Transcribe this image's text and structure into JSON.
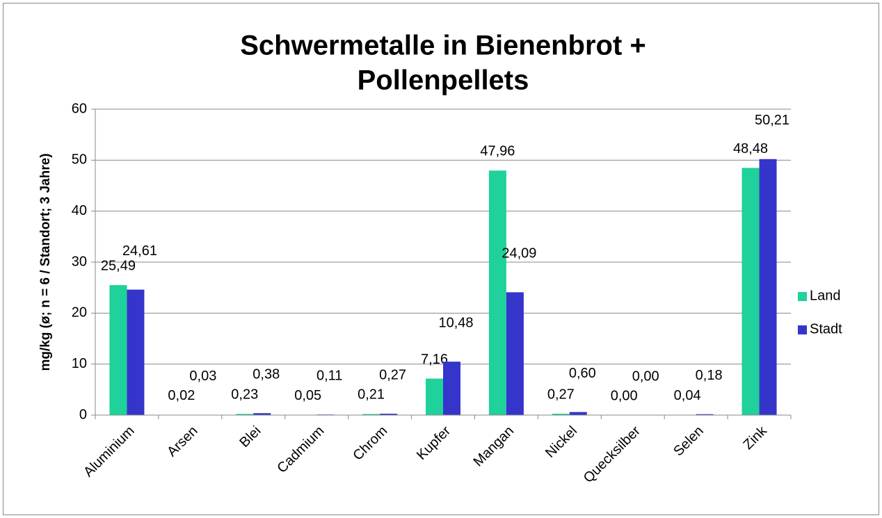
{
  "chart_data": {
    "type": "bar",
    "title": [
      "Schwermetalle in Bienenbrot +",
      "Pollenpellets"
    ],
    "y_label": "mg/kg (ø; n = 6 / Standort; 3 Jahre)",
    "categories": [
      "Aluminium",
      "Arsen",
      "Blei",
      "Cadmium",
      "Chrom",
      "Kupfer",
      "Mangan",
      "Nickel",
      "Quecksilber",
      "Selen",
      "Zink"
    ],
    "series": [
      {
        "name": "Land",
        "color": "#1fd19b",
        "values": [
          25.49,
          0.02,
          0.23,
          0.05,
          0.21,
          7.16,
          47.96,
          0.27,
          0.0,
          0.04,
          48.48
        ],
        "value_labels": [
          "25,49",
          "0,02",
          "0,23",
          "0,05",
          "0,21",
          "7,16",
          "47,96",
          "0,27",
          "0,00",
          "0,04",
          "48,48"
        ]
      },
      {
        "name": "Stadt",
        "color": "#3535cc",
        "values": [
          24.61,
          0.03,
          0.38,
          0.11,
          0.27,
          10.48,
          24.09,
          0.6,
          0.0,
          0.18,
          50.21
        ],
        "value_labels": [
          "24,61",
          "0,03",
          "0,38",
          "0,11",
          "0,27",
          "10,48",
          "24,09",
          "0,60",
          "0,00",
          "0,18",
          "50,21"
        ]
      }
    ],
    "ylim": [
      0,
      60
    ],
    "yticks": [
      0,
      10,
      20,
      30,
      40,
      50,
      60
    ],
    "grid": true,
    "legend": "right"
  }
}
